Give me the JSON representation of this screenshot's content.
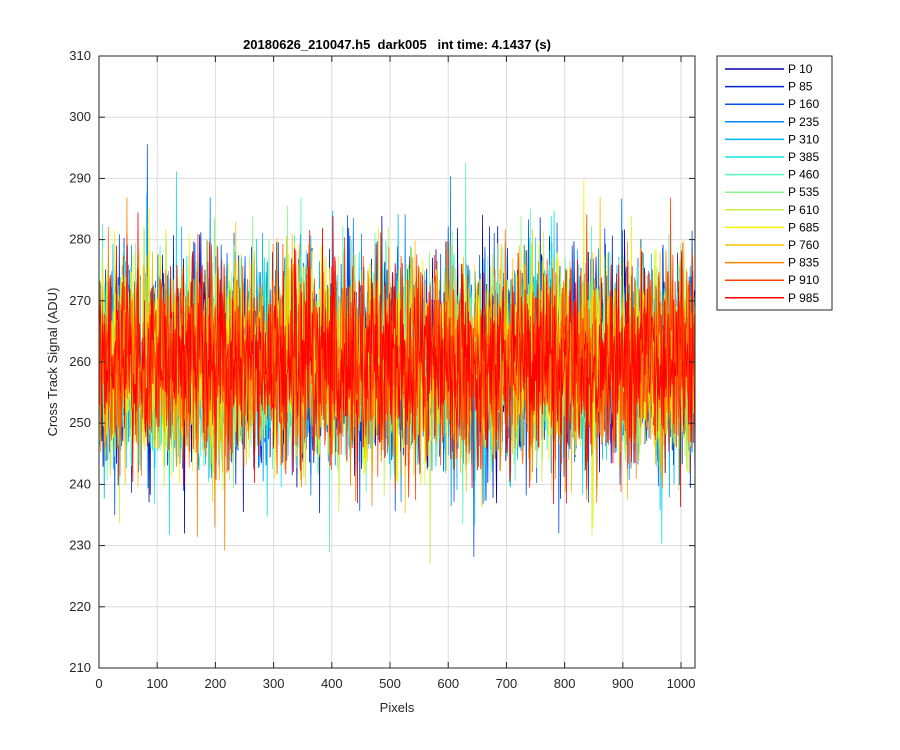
{
  "chart_data": {
    "type": "line",
    "title": "20180626_210047.h5  dark005   int time: 4.1437 (s)",
    "xlabel": "Pixels",
    "ylabel": "Cross Track Signal (ADU)",
    "xlim": [
      0,
      1024
    ],
    "ylim": [
      210,
      310
    ],
    "xticks": [
      0,
      100,
      200,
      300,
      400,
      500,
      600,
      700,
      800,
      900,
      1000
    ],
    "yticks": [
      210,
      220,
      230,
      240,
      250,
      260,
      270,
      280,
      290,
      300,
      310
    ],
    "grid": true,
    "legend_location": "outside-top-right",
    "baseline_mean": 260,
    "noise_std": 8,
    "series": [
      {
        "name": "P 10",
        "color": "#0000a8"
      },
      {
        "name": "P 85",
        "color": "#0022d0"
      },
      {
        "name": "P 160",
        "color": "#0055e8"
      },
      {
        "name": "P 235",
        "color": "#0088f5"
      },
      {
        "name": "P 310",
        "color": "#00b5ff"
      },
      {
        "name": "P 385",
        "color": "#10e5e5"
      },
      {
        "name": "P 460",
        "color": "#50f5c0"
      },
      {
        "name": "P 535",
        "color": "#8cf590"
      },
      {
        "name": "P 610",
        "color": "#c5f040"
      },
      {
        "name": "P 685",
        "color": "#f5f500"
      },
      {
        "name": "P 760",
        "color": "#fac000"
      },
      {
        "name": "P 835",
        "color": "#ff8000"
      },
      {
        "name": "P 910",
        "color": "#ff4000"
      },
      {
        "name": "P 985",
        "color": "#ff0000"
      }
    ]
  }
}
